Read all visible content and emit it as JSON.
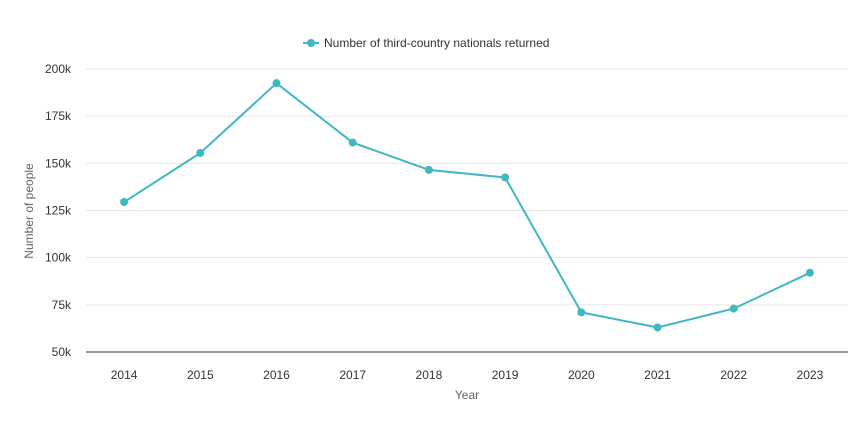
{
  "chart_data": {
    "type": "line",
    "title": "",
    "xlabel": "Year",
    "ylabel": "Number of people",
    "categories": [
      "2014",
      "2015",
      "2016",
      "2017",
      "2018",
      "2019",
      "2020",
      "2021",
      "2022",
      "2023"
    ],
    "series": [
      {
        "name": "Number of third-country nationals returned",
        "values": [
          129500,
          155500,
          192500,
          161000,
          146500,
          142500,
          71000,
          63000,
          73000,
          92000
        ]
      }
    ],
    "ylim": [
      50000,
      200000
    ],
    "yticks": [
      50000,
      75000,
      100000,
      125000,
      150000,
      175000,
      200000
    ],
    "ytick_labels": [
      "50k",
      "75k",
      "100k",
      "125k",
      "150k",
      "175k",
      "200k"
    ],
    "grid": true,
    "legend": "top-center",
    "colors": {
      "series": "#3fb8c1",
      "axis": "#333333",
      "grid": "#e6e6e6"
    }
  }
}
